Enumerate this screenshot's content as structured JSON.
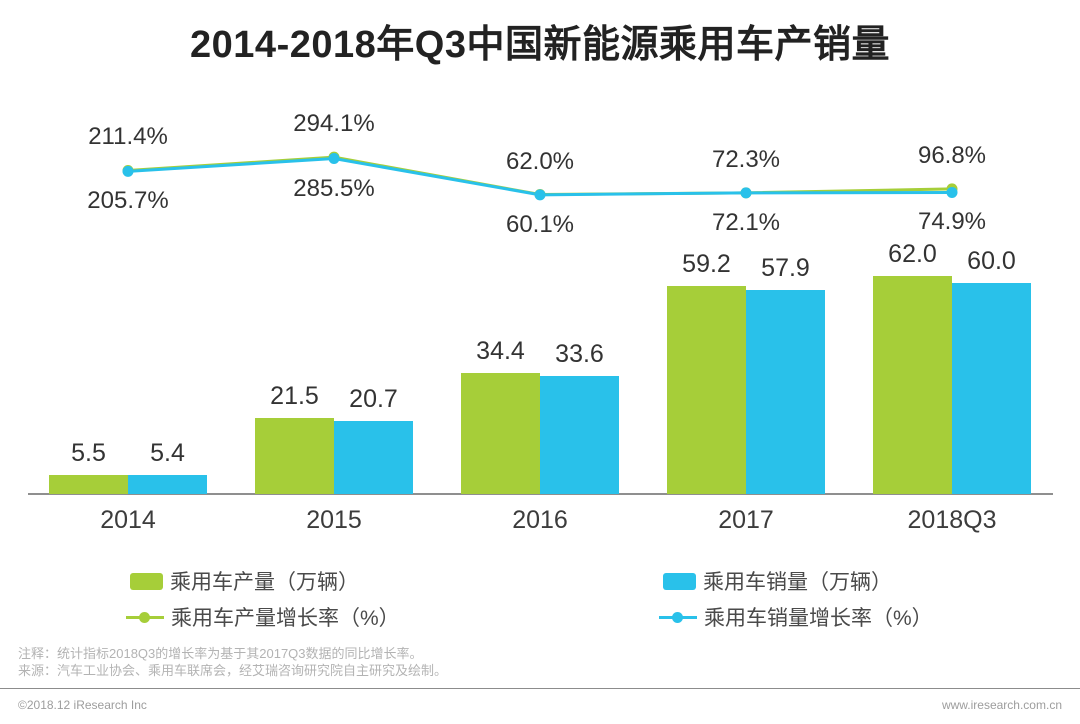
{
  "title": "2014-2018年Q3中国新能源乘用车产销量",
  "colors": {
    "production": "#A6CE39",
    "sales": "#29C1EA"
  },
  "chart_data": {
    "type": "bar+line",
    "categories": [
      "2014",
      "2015",
      "2016",
      "2017",
      "2018Q3"
    ],
    "series": [
      {
        "name": "乘用车产量（万辆）",
        "type": "bar",
        "color": "#A6CE39",
        "values": [
          5.5,
          21.5,
          34.4,
          59.2,
          62.0
        ]
      },
      {
        "name": "乘用车销量（万辆）",
        "type": "bar",
        "color": "#29C1EA",
        "values": [
          5.4,
          20.7,
          33.6,
          57.9,
          60.0
        ]
      },
      {
        "name": "乘用车产量增长率（%）",
        "type": "line",
        "color": "#A6CE39",
        "values": [
          211.4,
          294.1,
          62.0,
          72.3,
          96.8
        ]
      },
      {
        "name": "乘用车销量增长率（%）",
        "type": "line",
        "color": "#29C1EA",
        "values": [
          205.7,
          285.5,
          60.1,
          72.1,
          74.9
        ]
      }
    ],
    "bar_unit": "万辆",
    "line_unit": "%",
    "value_labels": true,
    "gridlines": false,
    "y_axis_visible": false,
    "legend_position": "bottom"
  },
  "notes": [
    "注释：统计指标2018Q3的增长率为基于其2017Q3数据的同比增长率。",
    "来源：汽车工业协会、乘用车联席会，经艾瑞咨询研究院自主研究及绘制。"
  ],
  "footer": {
    "left": "©2018.12 iResearch Inc",
    "right": "www.iresearch.com.cn"
  }
}
